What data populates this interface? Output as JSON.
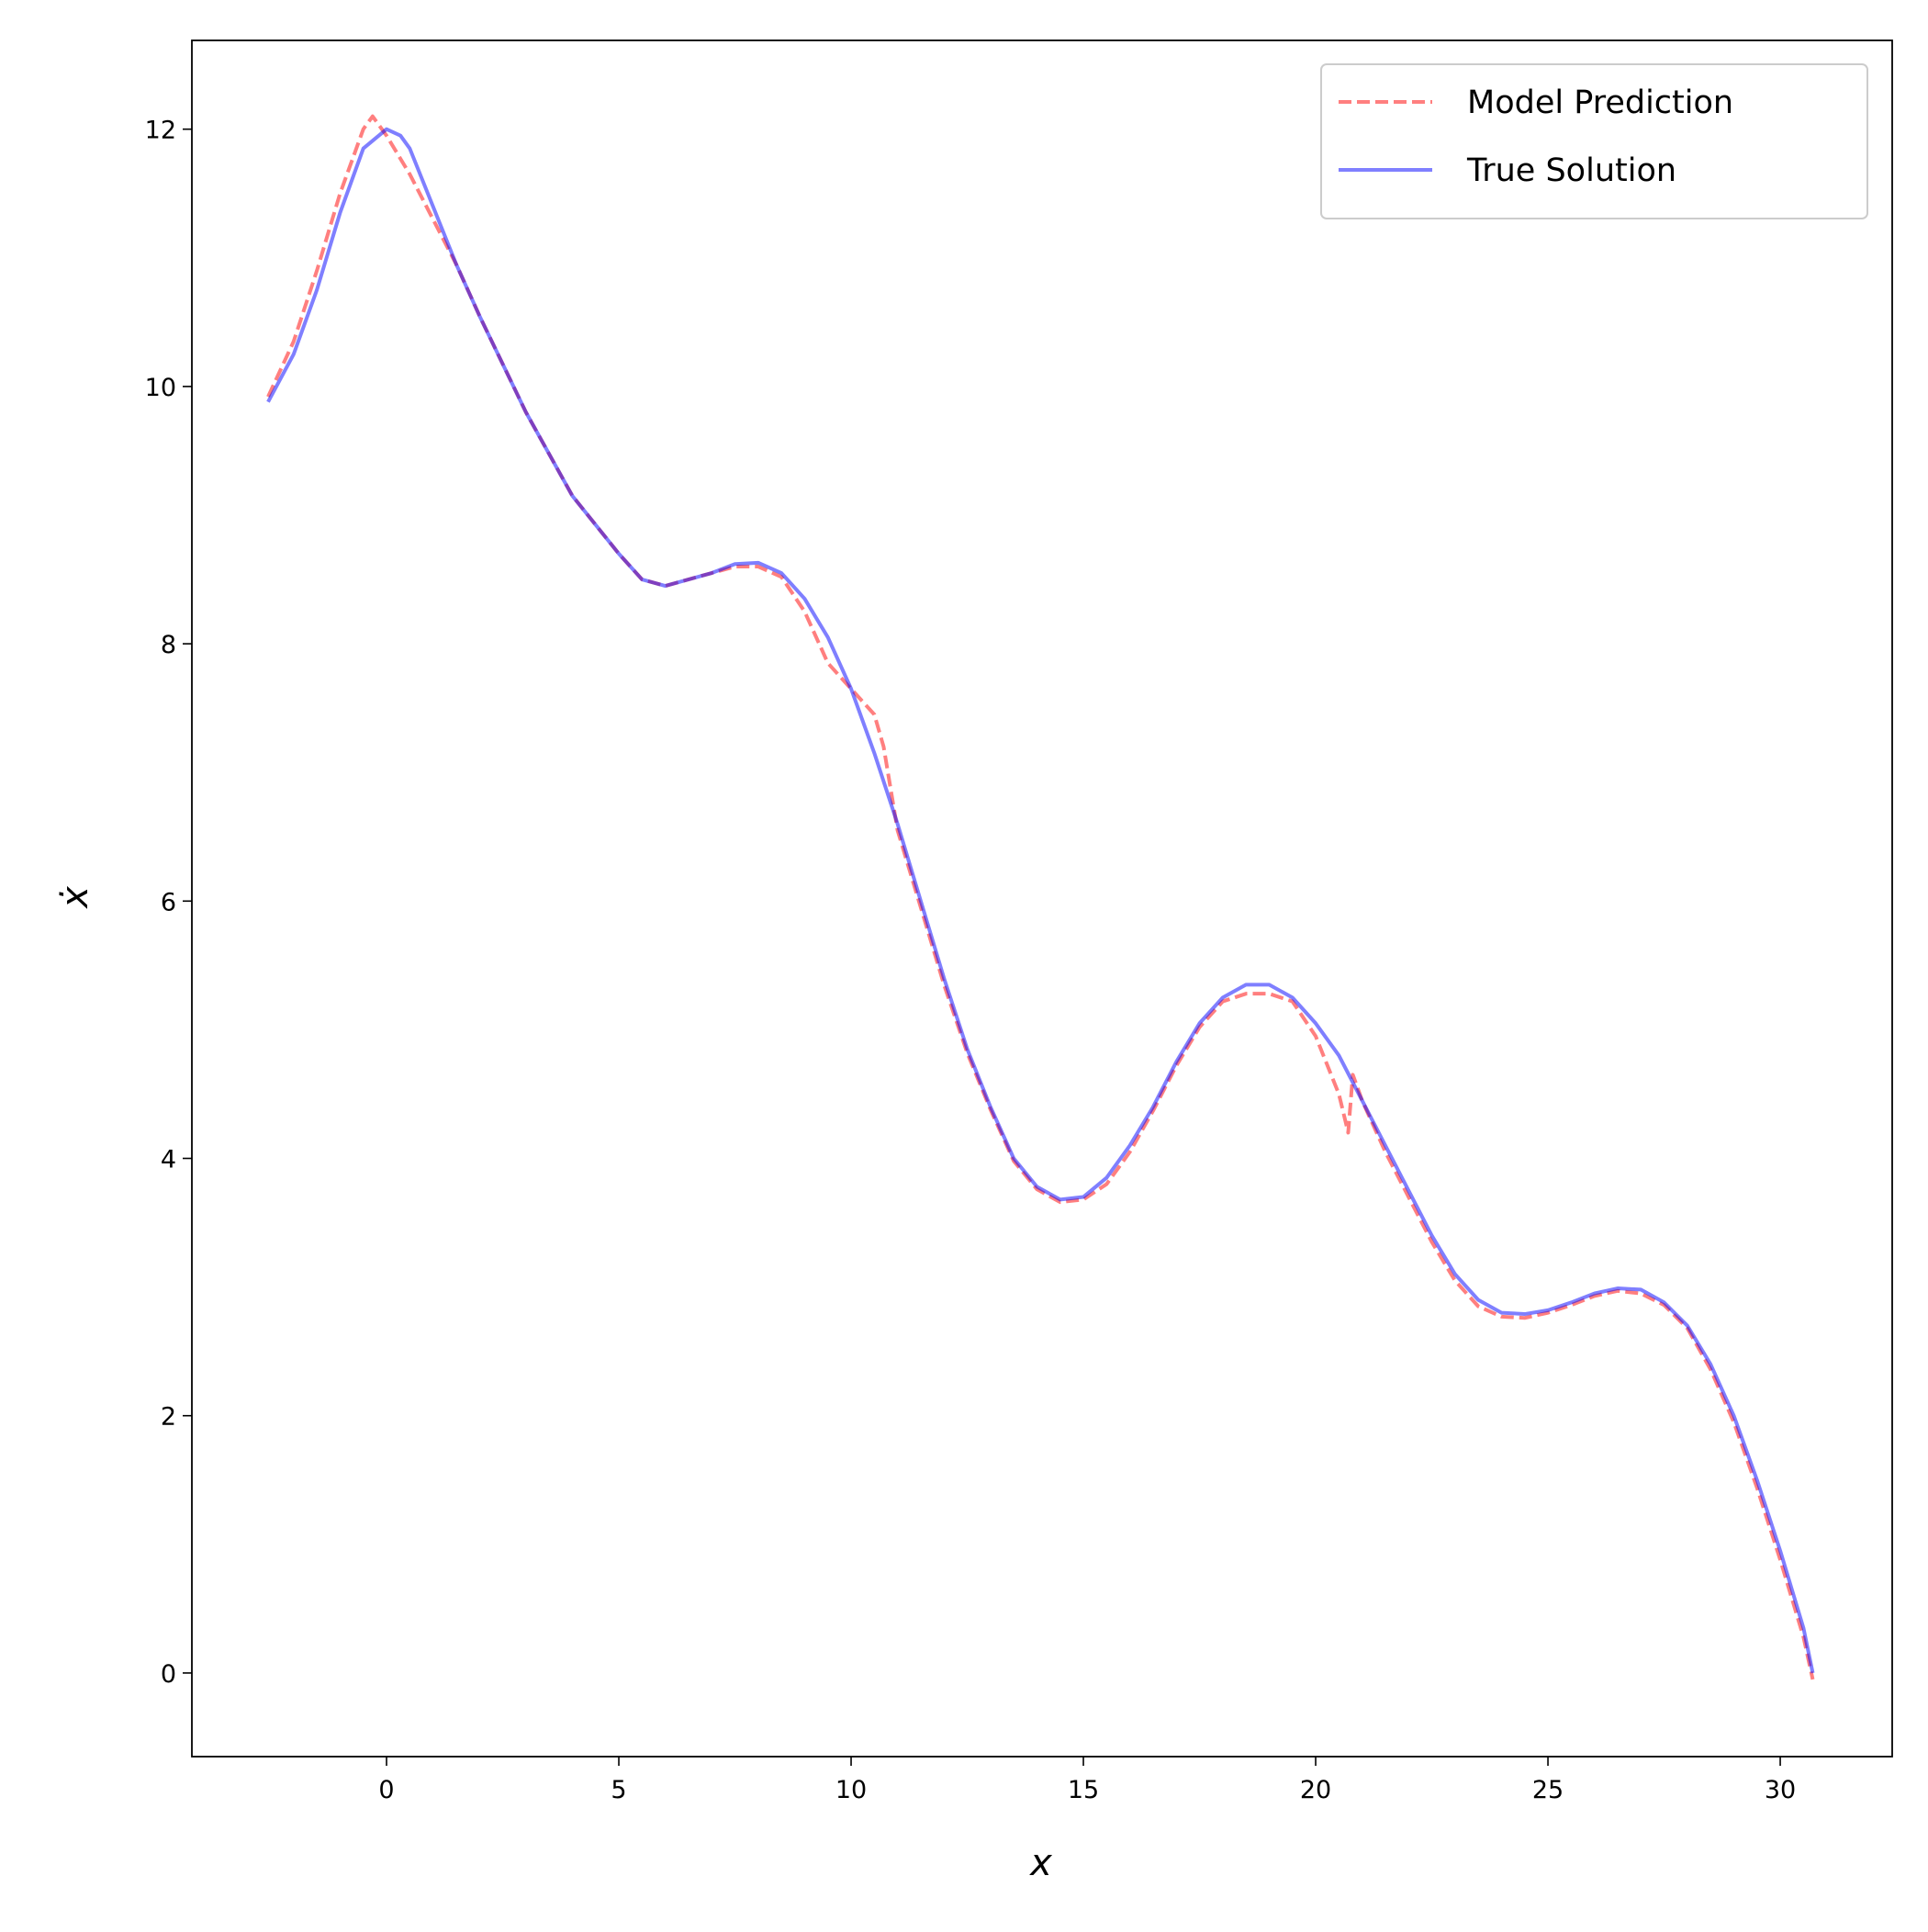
{
  "chart_data": {
    "type": "line",
    "xlabel": "x",
    "ylabel": "ẋ",
    "xlim": [
      -4.19,
      32.41
    ],
    "ylim": [
      -0.65,
      12.69
    ],
    "xticks": [
      0,
      5,
      10,
      15,
      20,
      25,
      30
    ],
    "yticks": [
      0,
      2,
      4,
      6,
      8,
      10,
      12
    ],
    "legend": "upper right",
    "series": [
      {
        "name": "Model Prediction",
        "color": "#ff0000",
        "dash": true,
        "x": [
          -2.55,
          -2,
          -1.5,
          -1,
          -0.5,
          -0.3,
          0,
          0.5,
          1,
          1.5,
          2,
          3,
          4,
          5,
          5.5,
          6,
          7,
          7.5,
          8,
          8.5,
          9,
          9.5,
          10,
          10.5,
          10.7,
          11,
          11.5,
          12,
          12.5,
          13,
          13.5,
          14,
          14.5,
          15,
          15.5,
          16,
          16.5,
          17,
          17.5,
          18,
          18.5,
          19,
          19.5,
          20,
          20.5,
          20.7,
          20.8,
          21,
          21.5,
          22,
          22.5,
          23,
          23.5,
          24,
          24.5,
          25,
          25.5,
          26,
          26.5,
          27,
          27.5,
          28,
          28.5,
          29,
          29.5,
          30,
          30.5,
          30.7
        ],
        "values": [
          9.92,
          10.35,
          10.9,
          11.5,
          12.0,
          12.1,
          11.95,
          11.65,
          11.3,
          10.95,
          10.55,
          9.8,
          9.15,
          8.7,
          8.5,
          8.45,
          8.55,
          8.6,
          8.6,
          8.52,
          8.25,
          7.85,
          7.65,
          7.45,
          7.2,
          6.55,
          5.95,
          5.35,
          4.82,
          4.38,
          3.98,
          3.76,
          3.66,
          3.68,
          3.8,
          4.05,
          4.37,
          4.72,
          5.02,
          5.22,
          5.28,
          5.28,
          5.22,
          4.95,
          4.5,
          4.2,
          4.65,
          4.45,
          4.05,
          3.7,
          3.35,
          3.05,
          2.85,
          2.77,
          2.76,
          2.8,
          2.86,
          2.93,
          2.97,
          2.95,
          2.86,
          2.68,
          2.36,
          1.95,
          1.44,
          0.88,
          0.28,
          -0.05
        ]
      },
      {
        "name": "True Solution",
        "color": "#0000ff",
        "dash": false,
        "x": [
          -2.55,
          -2,
          -1.5,
          -1,
          -0.5,
          0,
          0.3,
          0.5,
          1,
          1.5,
          2,
          3,
          4,
          5,
          5.5,
          6,
          7,
          7.5,
          8,
          8.5,
          9,
          9.5,
          10,
          10.5,
          11,
          11.5,
          12,
          12.5,
          13,
          13.5,
          14,
          14.5,
          15,
          15.5,
          16,
          16.5,
          17,
          17.5,
          18,
          18.5,
          19,
          19.5,
          20,
          20.5,
          21,
          21.5,
          22,
          22.5,
          23,
          23.5,
          24,
          24.5,
          25,
          25.5,
          26,
          26.5,
          27,
          27.5,
          28,
          28.5,
          29,
          29.5,
          30,
          30.5,
          30.7
        ],
        "values": [
          9.88,
          10.25,
          10.75,
          11.35,
          11.85,
          12.0,
          11.95,
          11.85,
          11.4,
          10.95,
          10.55,
          9.8,
          9.15,
          8.7,
          8.5,
          8.45,
          8.55,
          8.62,
          8.63,
          8.55,
          8.35,
          8.05,
          7.65,
          7.15,
          6.6,
          6.0,
          5.4,
          4.85,
          4.4,
          4.0,
          3.78,
          3.68,
          3.7,
          3.85,
          4.1,
          4.4,
          4.75,
          5.05,
          5.25,
          5.35,
          5.35,
          5.25,
          5.05,
          4.8,
          4.45,
          4.1,
          3.75,
          3.4,
          3.1,
          2.9,
          2.8,
          2.79,
          2.82,
          2.88,
          2.95,
          2.99,
          2.98,
          2.88,
          2.7,
          2.4,
          2.0,
          1.5,
          0.95,
          0.35,
          0.0
        ]
      }
    ]
  }
}
